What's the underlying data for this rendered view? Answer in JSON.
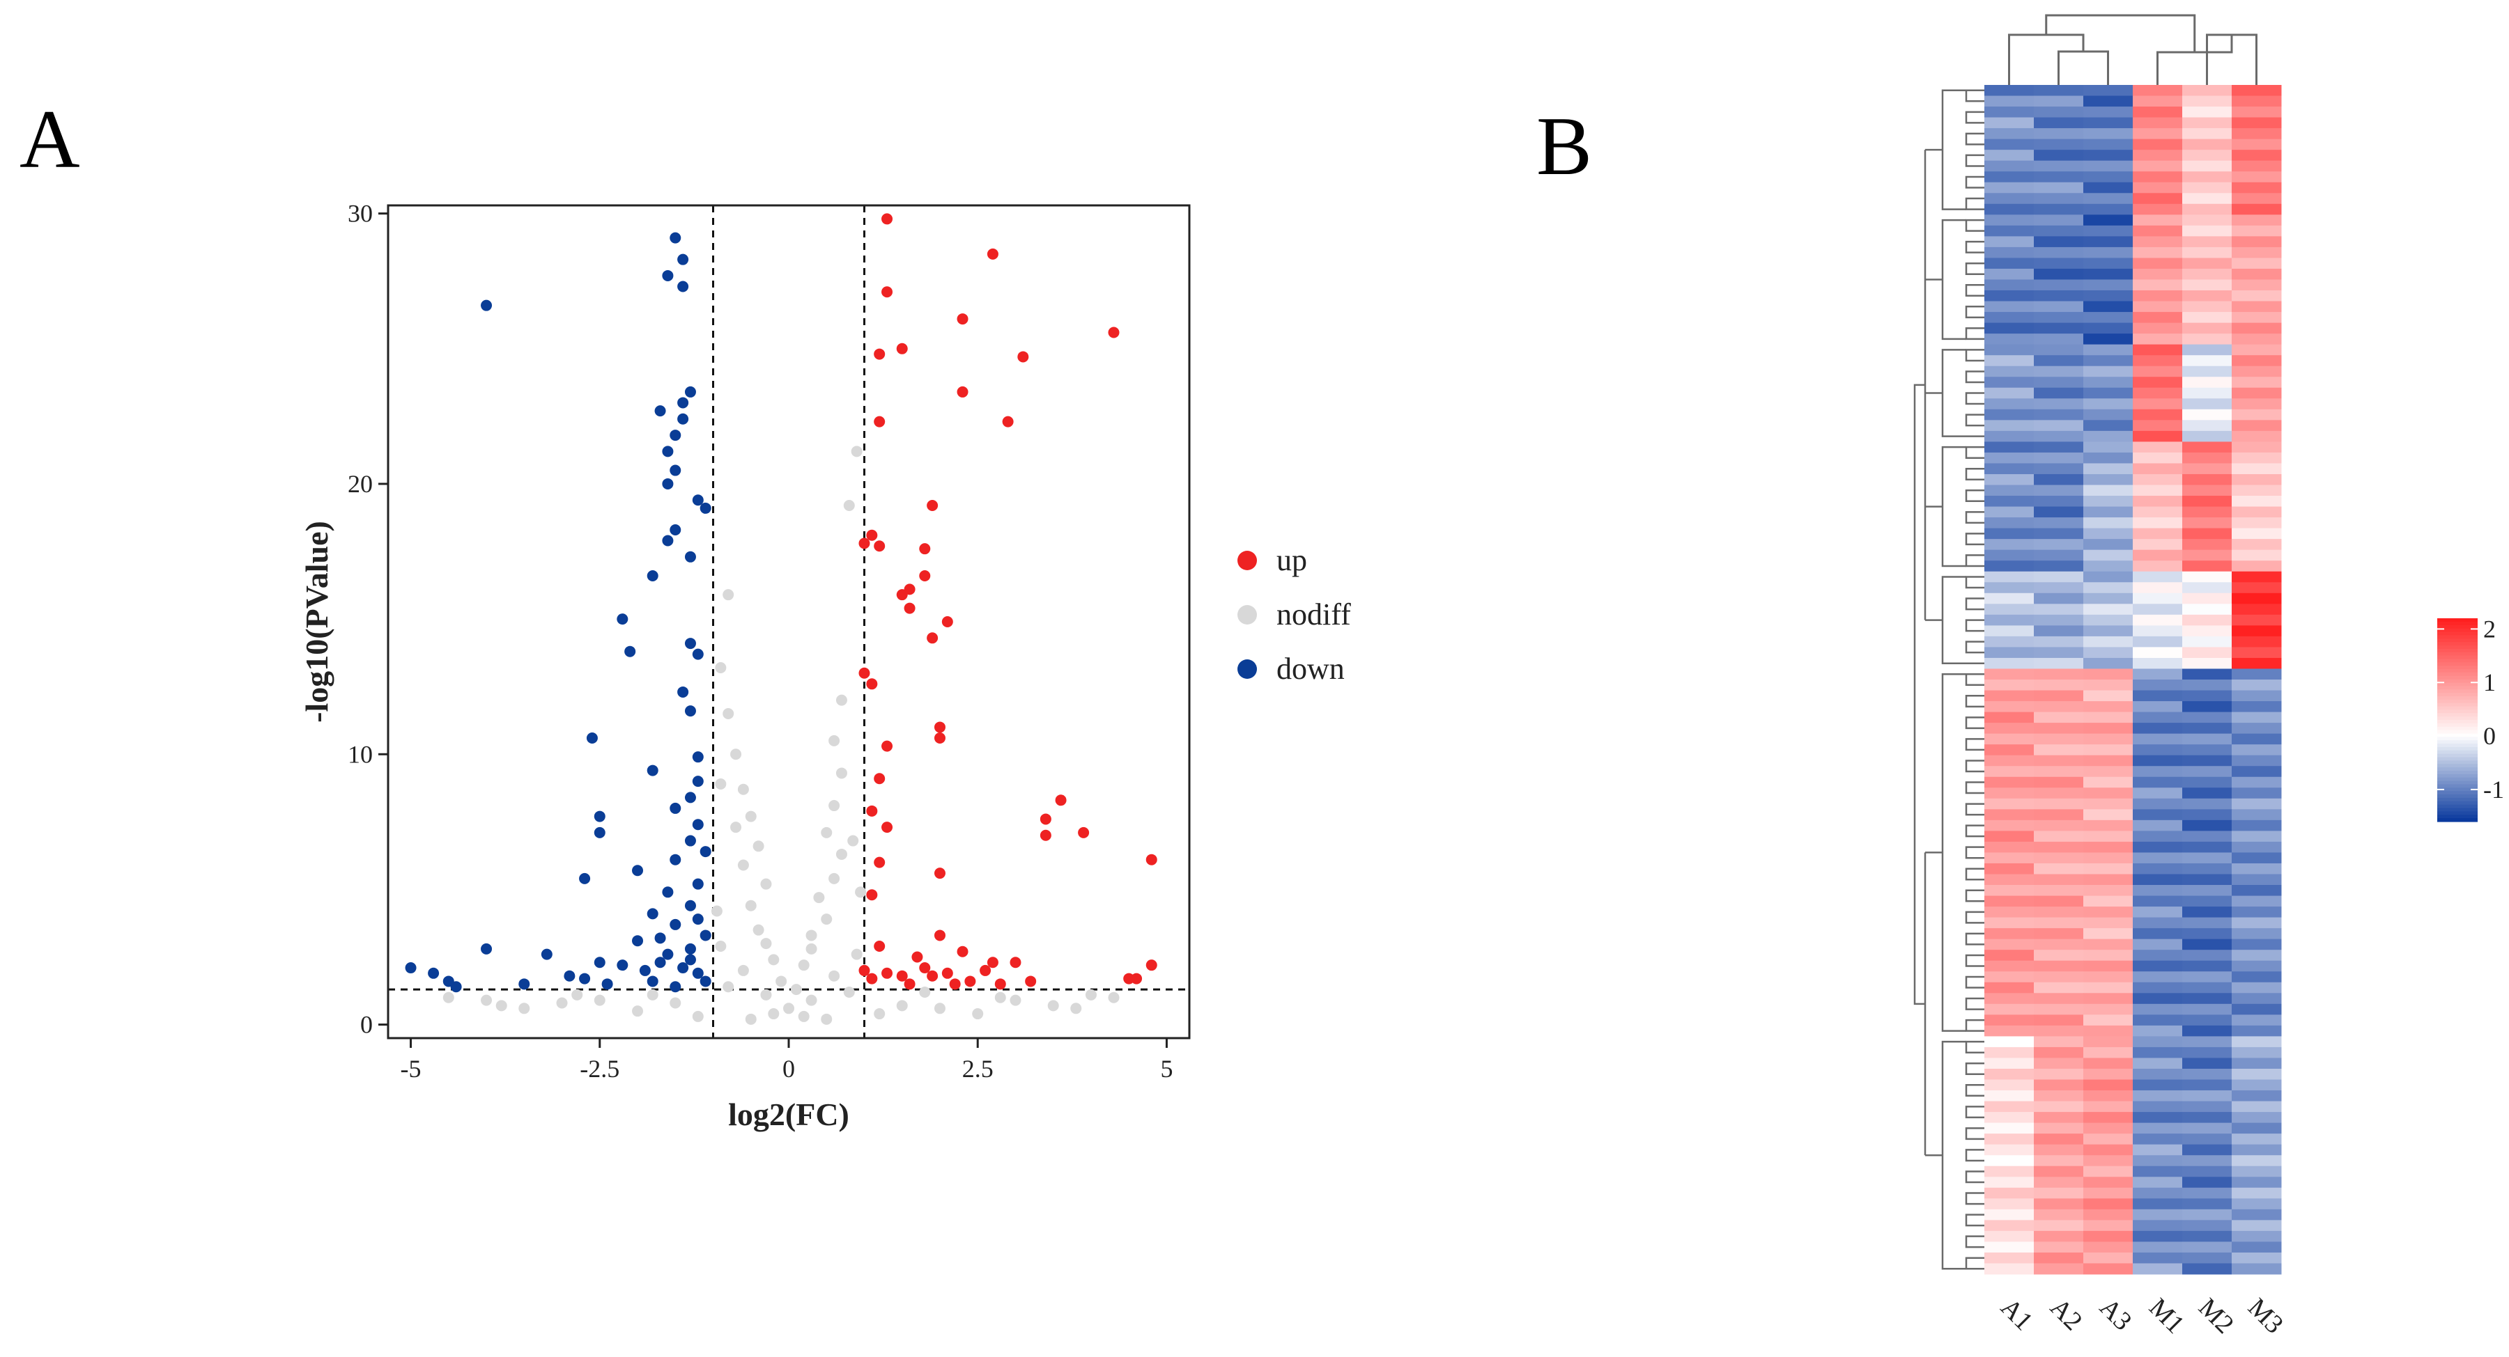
{
  "panels": {
    "a_label": "A",
    "b_label": "B"
  },
  "chart_data": [
    {
      "type": "scatter",
      "name": "volcano",
      "title": "",
      "xlabel": "log2(FC)",
      "ylabel": "-log10(PValue)",
      "xlim": [
        -5.3,
        5.3
      ],
      "ylim": [
        -0.5,
        30.3
      ],
      "xticks": [
        -5,
        -2.5,
        0,
        2.5,
        5
      ],
      "xtick_labels": [
        "-5",
        "-2.5",
        "0",
        "2.5",
        "5"
      ],
      "yticks": [
        0,
        10,
        20,
        30
      ],
      "ytick_labels": [
        "0",
        "10",
        "20",
        "30"
      ],
      "vlines": [
        -1,
        1
      ],
      "hline": 1.3,
      "legend_position": "right",
      "colors": {
        "up": "#ee2222",
        "nodiff": "#d8d8d8",
        "down": "#0a3d96"
      },
      "series": [
        {
          "name": "up",
          "label": "up",
          "points": [
            [
              1.3,
              29.8
            ],
            [
              2.7,
              28.5
            ],
            [
              1.3,
              27.1
            ],
            [
              2.3,
              26.1
            ],
            [
              4.3,
              25.6
            ],
            [
              1.5,
              25.0
            ],
            [
              1.2,
              24.8
            ],
            [
              3.1,
              24.7
            ],
            [
              2.3,
              23.4
            ],
            [
              2.9,
              22.3
            ],
            [
              1.2,
              22.3
            ],
            [
              1.9,
              19.2
            ],
            [
              1.1,
              18.1
            ],
            [
              1.8,
              17.6
            ],
            [
              1.0,
              17.8
            ],
            [
              1.2,
              17.7
            ],
            [
              1.8,
              16.6
            ],
            [
              1.6,
              16.1
            ],
            [
              1.5,
              15.9
            ],
            [
              1.6,
              15.4
            ],
            [
              2.1,
              14.9
            ],
            [
              1.9,
              14.3
            ],
            [
              1.0,
              13.0
            ],
            [
              1.1,
              12.6
            ],
            [
              2.0,
              11.0
            ],
            [
              2.0,
              10.6
            ],
            [
              1.3,
              10.3
            ],
            [
              1.2,
              9.1
            ],
            [
              3.6,
              8.3
            ],
            [
              1.1,
              7.9
            ],
            [
              3.4,
              7.6
            ],
            [
              1.3,
              7.3
            ],
            [
              3.4,
              7.0
            ],
            [
              3.9,
              7.1
            ],
            [
              4.8,
              6.1
            ],
            [
              1.2,
              6.0
            ],
            [
              2.0,
              5.6
            ],
            [
              1.1,
              4.8
            ],
            [
              2.0,
              3.3
            ],
            [
              1.2,
              2.9
            ],
            [
              1.7,
              2.5
            ],
            [
              2.3,
              2.7
            ],
            [
              2.7,
              2.3
            ],
            [
              3.0,
              2.3
            ],
            [
              4.8,
              2.2
            ],
            [
              1.0,
              2.0
            ],
            [
              1.5,
              1.8
            ],
            [
              1.1,
              1.7
            ],
            [
              1.3,
              1.9
            ],
            [
              1.6,
              1.5
            ],
            [
              1.8,
              2.1
            ],
            [
              2.1,
              1.9
            ],
            [
              2.4,
              1.6
            ],
            [
              2.6,
              2.0
            ],
            [
              2.8,
              1.5
            ],
            [
              3.2,
              1.6
            ],
            [
              4.5,
              1.7
            ],
            [
              4.6,
              1.7
            ],
            [
              1.9,
              1.8
            ],
            [
              2.2,
              1.5
            ]
          ]
        },
        {
          "name": "nodiff",
          "label": "nodiff",
          "points": [
            [
              -0.8,
              15.9
            ],
            [
              0.9,
              21.2
            ],
            [
              0.8,
              19.2
            ],
            [
              -0.9,
              13.2
            ],
            [
              0.7,
              12.0
            ],
            [
              -0.8,
              11.5
            ],
            [
              0.6,
              10.5
            ],
            [
              -0.7,
              10.0
            ],
            [
              0.7,
              9.3
            ],
            [
              -0.6,
              8.7
            ],
            [
              0.6,
              8.1
            ],
            [
              -0.5,
              7.7
            ],
            [
              0.5,
              7.1
            ],
            [
              -0.7,
              7.3
            ],
            [
              -0.4,
              6.6
            ],
            [
              0.7,
              6.3
            ],
            [
              -0.6,
              5.9
            ],
            [
              0.6,
              5.4
            ],
            [
              -0.3,
              5.2
            ],
            [
              0.4,
              4.7
            ],
            [
              -0.5,
              4.4
            ],
            [
              0.5,
              3.9
            ],
            [
              -0.4,
              3.5
            ],
            [
              0.3,
              3.3
            ],
            [
              -0.3,
              3.0
            ],
            [
              0.3,
              2.8
            ],
            [
              -0.2,
              2.4
            ],
            [
              0.2,
              2.2
            ],
            [
              -0.9,
              2.9
            ],
            [
              0.9,
              2.6
            ],
            [
              -0.6,
              2.0
            ],
            [
              0.6,
              1.8
            ],
            [
              -0.1,
              1.6
            ],
            [
              0.1,
              1.3
            ],
            [
              -0.8,
              1.4
            ],
            [
              0.8,
              1.2
            ],
            [
              -0.3,
              1.1
            ],
            [
              0.3,
              0.9
            ],
            [
              0,
              0.6
            ],
            [
              -0.2,
              0.4
            ],
            [
              0.2,
              0.3
            ],
            [
              -0.5,
              0.2
            ],
            [
              0.5,
              0.2
            ],
            [
              -1.5,
              0.8
            ],
            [
              1.5,
              0.7
            ],
            [
              -2,
              0.5
            ],
            [
              2,
              0.6
            ],
            [
              -2.5,
              0.9
            ],
            [
              2.5,
              0.4
            ],
            [
              -3,
              0.8
            ],
            [
              3,
              0.9
            ],
            [
              -3.5,
              0.6
            ],
            [
              3.5,
              0.7
            ],
            [
              -4,
              0.9
            ],
            [
              4,
              1.1
            ],
            [
              -4.5,
              1.0
            ],
            [
              4.3,
              1.0
            ],
            [
              -1.2,
              0.3
            ],
            [
              1.2,
              0.4
            ],
            [
              -2.8,
              1.1
            ],
            [
              2.8,
              1.0
            ],
            [
              -3.8,
              0.7
            ],
            [
              3.8,
              0.6
            ],
            [
              -1.8,
              1.1
            ],
            [
              1.8,
              1.2
            ],
            [
              -0.9,
              8.9
            ],
            [
              0.85,
              6.8
            ],
            [
              -0.95,
              4.2
            ],
            [
              0.95,
              4.9
            ]
          ]
        },
        {
          "name": "down",
          "label": "down",
          "points": [
            [
              -1.5,
              29.1
            ],
            [
              -1.4,
              28.3
            ],
            [
              -1.6,
              27.7
            ],
            [
              -1.4,
              27.3
            ],
            [
              -4.0,
              26.6
            ],
            [
              -1.3,
              23.4
            ],
            [
              -1.4,
              23.0
            ],
            [
              -1.7,
              22.7
            ],
            [
              -1.4,
              22.4
            ],
            [
              -1.5,
              21.8
            ],
            [
              -1.6,
              21.2
            ],
            [
              -1.5,
              20.5
            ],
            [
              -1.6,
              20.0
            ],
            [
              -1.2,
              19.4
            ],
            [
              -1.1,
              19.1
            ],
            [
              -1.5,
              18.3
            ],
            [
              -1.6,
              17.9
            ],
            [
              -1.3,
              17.3
            ],
            [
              -1.8,
              16.6
            ],
            [
              -2.2,
              15.0
            ],
            [
              -1.3,
              14.1
            ],
            [
              -1.2,
              13.7
            ],
            [
              -2.1,
              13.8
            ],
            [
              -1.4,
              12.3
            ],
            [
              -1.3,
              11.6
            ],
            [
              -2.6,
              10.6
            ],
            [
              -1.2,
              9.9
            ],
            [
              -1.8,
              9.4
            ],
            [
              -1.2,
              9.0
            ],
            [
              -1.3,
              8.4
            ],
            [
              -1.5,
              8.0
            ],
            [
              -2.5,
              7.7
            ],
            [
              -1.2,
              7.4
            ],
            [
              -2.5,
              7.1
            ],
            [
              -1.3,
              6.8
            ],
            [
              -1.1,
              6.4
            ],
            [
              -1.5,
              6.1
            ],
            [
              -2.7,
              5.4
            ],
            [
              -2.0,
              5.7
            ],
            [
              -1.2,
              5.2
            ],
            [
              -1.6,
              4.9
            ],
            [
              -1.3,
              4.4
            ],
            [
              -1.8,
              4.1
            ],
            [
              -1.2,
              3.9
            ],
            [
              -1.5,
              3.7
            ],
            [
              -1.1,
              3.3
            ],
            [
              -1.7,
              3.2
            ],
            [
              -4.0,
              2.8
            ],
            [
              -2.0,
              3.1
            ],
            [
              -1.3,
              2.8
            ],
            [
              -1.6,
              2.6
            ],
            [
              -3.2,
              2.6
            ],
            [
              -2.9,
              1.8
            ],
            [
              -2.5,
              2.3
            ],
            [
              -2.2,
              2.2
            ],
            [
              -1.9,
              2.0
            ],
            [
              -1.4,
              2.1
            ],
            [
              -1.2,
              1.9
            ],
            [
              -5.0,
              2.1
            ],
            [
              -4.7,
              1.9
            ],
            [
              -4.4,
              1.4
            ],
            [
              -3.5,
              1.5
            ],
            [
              -2.7,
              1.7
            ],
            [
              -1.8,
              1.6
            ],
            [
              -1.5,
              1.4
            ],
            [
              -1.1,
              1.6
            ],
            [
              -1.3,
              2.4
            ],
            [
              -1.7,
              2.3
            ],
            [
              -2.4,
              1.5
            ],
            [
              -4.5,
              1.6
            ]
          ]
        }
      ]
    },
    {
      "type": "heatmap",
      "name": "cluster-heatmap",
      "title": "",
      "columns": [
        "A1",
        "A2",
        "A3",
        "M1",
        "M2",
        "M3"
      ],
      "colorbar": {
        "min": -1.6,
        "max": 2.2,
        "ticks": [
          2,
          1,
          0,
          -1
        ],
        "tick_labels": [
          "2",
          "1",
          "0",
          "-1"
        ],
        "low": "#0b3a9e",
        "mid": "#ffffff",
        "high": "#ff1f1f"
      },
      "row_groups": [
        {
          "rows": 12,
          "values": [
            -0.9,
            -1.0,
            -1.1,
            1.2,
            0.5,
            1.3
          ]
        },
        {
          "rows": 12,
          "values": [
            -1.0,
            -1.1,
            -1.2,
            1.0,
            0.6,
            0.9
          ]
        },
        {
          "rows": 9,
          "values": [
            -0.8,
            -0.9,
            -0.9,
            1.4,
            -0.2,
            1.0
          ]
        },
        {
          "rows": 12,
          "values": [
            -0.9,
            -1.0,
            -0.6,
            0.6,
            1.3,
            0.5
          ]
        },
        {
          "rows": 9,
          "values": [
            -0.5,
            -0.6,
            -0.5,
            -0.1,
            0.1,
            2.0
          ]
        },
        {
          "rows": 34,
          "values": [
            1.0,
            0.9,
            0.8,
            -1.0,
            -1.1,
            -0.9
          ]
        },
        {
          "rows": 22,
          "values": [
            0.3,
            0.9,
            1.0,
            -0.9,
            -1.0,
            -0.7
          ]
        }
      ]
    }
  ]
}
